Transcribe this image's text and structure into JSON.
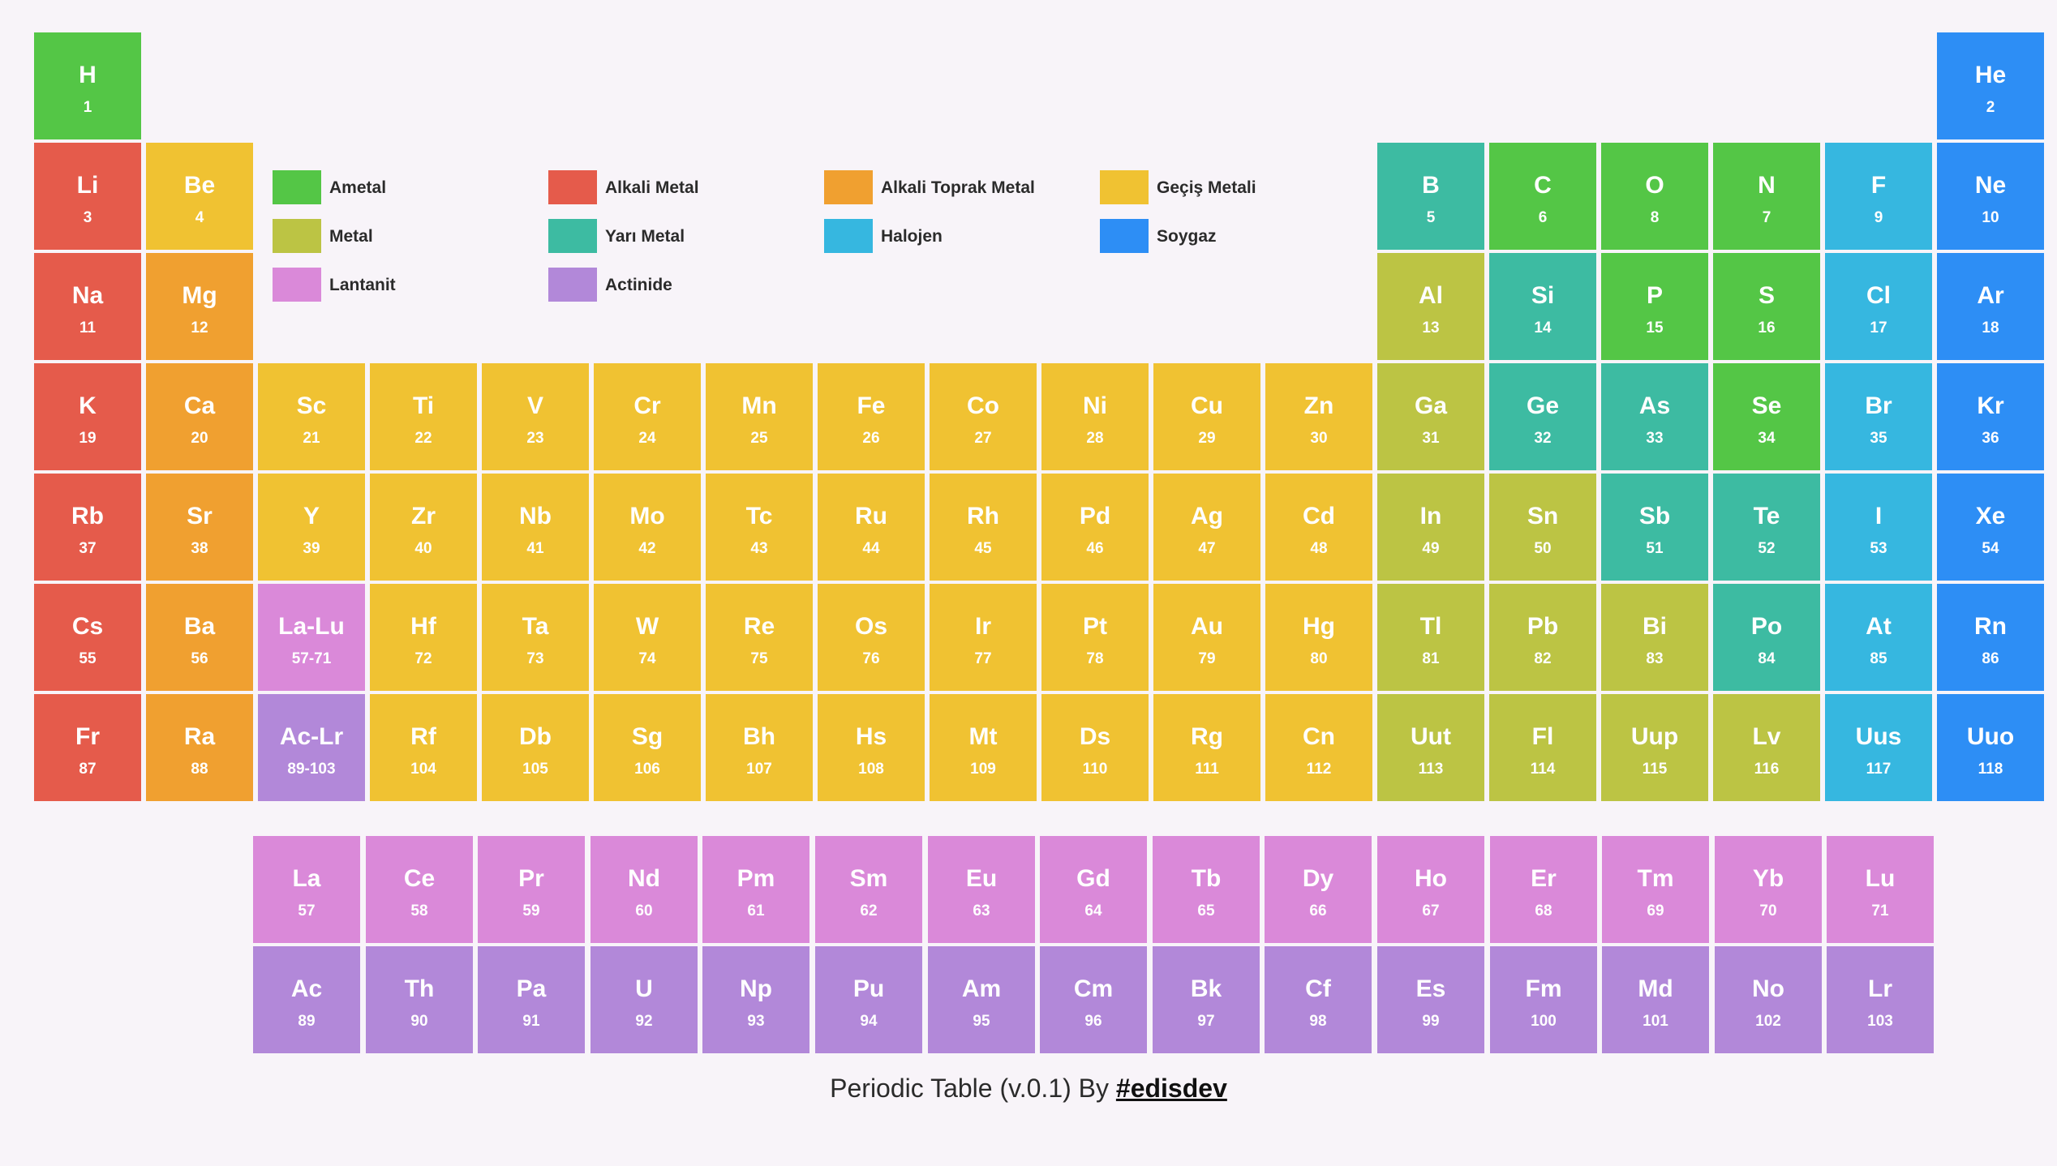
{
  "colors": {
    "ametal": "#54c646",
    "alkali": "#e55b4b",
    "toprak": "#f0a030",
    "gecis": "#f0c232",
    "metal": "#bcc444",
    "yari": "#3dbba2",
    "halojen": "#36b7e0",
    "soygaz": "#2d8ef5",
    "lantanit": "#da89d9",
    "actinide": "#b288d9"
  },
  "legend": [
    {
      "cat": "ametal",
      "label": "Ametal"
    },
    {
      "cat": "alkali",
      "label": "Alkali Metal"
    },
    {
      "cat": "toprak",
      "label": "Alkali Toprak Metal"
    },
    {
      "cat": "gecis",
      "label": "Geçiş Metali"
    },
    {
      "cat": "metal",
      "label": "Metal"
    },
    {
      "cat": "yari",
      "label": "Yarı Metal"
    },
    {
      "cat": "halojen",
      "label": "Halojen"
    },
    {
      "cat": "soygaz",
      "label": "Soygaz"
    },
    {
      "cat": "lantanit",
      "label": "Lantanit"
    },
    {
      "cat": "actinide",
      "label": "Actinide"
    }
  ],
  "elements": [
    {
      "s": "H",
      "n": "1",
      "r": 1,
      "c": 1,
      "cat": "ametal"
    },
    {
      "s": "He",
      "n": "2",
      "r": 1,
      "c": 18,
      "cat": "soygaz"
    },
    {
      "s": "Li",
      "n": "3",
      "r": 2,
      "c": 1,
      "cat": "alkali"
    },
    {
      "s": "Be",
      "n": "4",
      "r": 2,
      "c": 2,
      "cat": "gecis"
    },
    {
      "s": "B",
      "n": "5",
      "r": 2,
      "c": 13,
      "cat": "yari"
    },
    {
      "s": "C",
      "n": "6",
      "r": 2,
      "c": 14,
      "cat": "ametal"
    },
    {
      "s": "O",
      "n": "8",
      "r": 2,
      "c": 15,
      "cat": "ametal"
    },
    {
      "s": "N",
      "n": "7",
      "r": 2,
      "c": 16,
      "cat": "ametal"
    },
    {
      "s": "F",
      "n": "9",
      "r": 2,
      "c": 17,
      "cat": "halojen"
    },
    {
      "s": "Ne",
      "n": "10",
      "r": 2,
      "c": 18,
      "cat": "soygaz"
    },
    {
      "s": "Na",
      "n": "11",
      "r": 3,
      "c": 1,
      "cat": "alkali"
    },
    {
      "s": "Mg",
      "n": "12",
      "r": 3,
      "c": 2,
      "cat": "toprak"
    },
    {
      "s": "Al",
      "n": "13",
      "r": 3,
      "c": 13,
      "cat": "metal"
    },
    {
      "s": "Si",
      "n": "14",
      "r": 3,
      "c": 14,
      "cat": "yari"
    },
    {
      "s": "P",
      "n": "15",
      "r": 3,
      "c": 15,
      "cat": "ametal"
    },
    {
      "s": "S",
      "n": "16",
      "r": 3,
      "c": 16,
      "cat": "ametal"
    },
    {
      "s": "Cl",
      "n": "17",
      "r": 3,
      "c": 17,
      "cat": "halojen"
    },
    {
      "s": "Ar",
      "n": "18",
      "r": 3,
      "c": 18,
      "cat": "soygaz"
    },
    {
      "s": "K",
      "n": "19",
      "r": 4,
      "c": 1,
      "cat": "alkali"
    },
    {
      "s": "Ca",
      "n": "20",
      "r": 4,
      "c": 2,
      "cat": "toprak"
    },
    {
      "s": "Sc",
      "n": "21",
      "r": 4,
      "c": 3,
      "cat": "gecis"
    },
    {
      "s": "Ti",
      "n": "22",
      "r": 4,
      "c": 4,
      "cat": "gecis"
    },
    {
      "s": "V",
      "n": "23",
      "r": 4,
      "c": 5,
      "cat": "gecis"
    },
    {
      "s": "Cr",
      "n": "24",
      "r": 4,
      "c": 6,
      "cat": "gecis"
    },
    {
      "s": "Mn",
      "n": "25",
      "r": 4,
      "c": 7,
      "cat": "gecis"
    },
    {
      "s": "Fe",
      "n": "26",
      "r": 4,
      "c": 8,
      "cat": "gecis"
    },
    {
      "s": "Co",
      "n": "27",
      "r": 4,
      "c": 9,
      "cat": "gecis"
    },
    {
      "s": "Ni",
      "n": "28",
      "r": 4,
      "c": 10,
      "cat": "gecis"
    },
    {
      "s": "Cu",
      "n": "29",
      "r": 4,
      "c": 11,
      "cat": "gecis"
    },
    {
      "s": "Zn",
      "n": "30",
      "r": 4,
      "c": 12,
      "cat": "gecis"
    },
    {
      "s": "Ga",
      "n": "31",
      "r": 4,
      "c": 13,
      "cat": "metal"
    },
    {
      "s": "Ge",
      "n": "32",
      "r": 4,
      "c": 14,
      "cat": "yari"
    },
    {
      "s": "As",
      "n": "33",
      "r": 4,
      "c": 15,
      "cat": "yari"
    },
    {
      "s": "Se",
      "n": "34",
      "r": 4,
      "c": 16,
      "cat": "ametal"
    },
    {
      "s": "Br",
      "n": "35",
      "r": 4,
      "c": 17,
      "cat": "halojen"
    },
    {
      "s": "Kr",
      "n": "36",
      "r": 4,
      "c": 18,
      "cat": "soygaz"
    },
    {
      "s": "Rb",
      "n": "37",
      "r": 5,
      "c": 1,
      "cat": "alkali"
    },
    {
      "s": "Sr",
      "n": "38",
      "r": 5,
      "c": 2,
      "cat": "toprak"
    },
    {
      "s": "Y",
      "n": "39",
      "r": 5,
      "c": 3,
      "cat": "gecis"
    },
    {
      "s": "Zr",
      "n": "40",
      "r": 5,
      "c": 4,
      "cat": "gecis"
    },
    {
      "s": "Nb",
      "n": "41",
      "r": 5,
      "c": 5,
      "cat": "gecis"
    },
    {
      "s": "Mo",
      "n": "42",
      "r": 5,
      "c": 6,
      "cat": "gecis"
    },
    {
      "s": "Tc",
      "n": "43",
      "r": 5,
      "c": 7,
      "cat": "gecis"
    },
    {
      "s": "Ru",
      "n": "44",
      "r": 5,
      "c": 8,
      "cat": "gecis"
    },
    {
      "s": "Rh",
      "n": "45",
      "r": 5,
      "c": 9,
      "cat": "gecis"
    },
    {
      "s": "Pd",
      "n": "46",
      "r": 5,
      "c": 10,
      "cat": "gecis"
    },
    {
      "s": "Ag",
      "n": "47",
      "r": 5,
      "c": 11,
      "cat": "gecis"
    },
    {
      "s": "Cd",
      "n": "48",
      "r": 5,
      "c": 12,
      "cat": "gecis"
    },
    {
      "s": "In",
      "n": "49",
      "r": 5,
      "c": 13,
      "cat": "metal"
    },
    {
      "s": "Sn",
      "n": "50",
      "r": 5,
      "c": 14,
      "cat": "metal"
    },
    {
      "s": "Sb",
      "n": "51",
      "r": 5,
      "c": 15,
      "cat": "yari"
    },
    {
      "s": "Te",
      "n": "52",
      "r": 5,
      "c": 16,
      "cat": "yari"
    },
    {
      "s": "I",
      "n": "53",
      "r": 5,
      "c": 17,
      "cat": "halojen"
    },
    {
      "s": "Xe",
      "n": "54",
      "r": 5,
      "c": 18,
      "cat": "soygaz"
    },
    {
      "s": "Cs",
      "n": "55",
      "r": 6,
      "c": 1,
      "cat": "alkali"
    },
    {
      "s": "Ba",
      "n": "56",
      "r": 6,
      "c": 2,
      "cat": "toprak"
    },
    {
      "s": "La-Lu",
      "n": "57-71",
      "r": 6,
      "c": 3,
      "cat": "lantanit"
    },
    {
      "s": "Hf",
      "n": "72",
      "r": 6,
      "c": 4,
      "cat": "gecis"
    },
    {
      "s": "Ta",
      "n": "73",
      "r": 6,
      "c": 5,
      "cat": "gecis"
    },
    {
      "s": "W",
      "n": "74",
      "r": 6,
      "c": 6,
      "cat": "gecis"
    },
    {
      "s": "Re",
      "n": "75",
      "r": 6,
      "c": 7,
      "cat": "gecis"
    },
    {
      "s": "Os",
      "n": "76",
      "r": 6,
      "c": 8,
      "cat": "gecis"
    },
    {
      "s": "Ir",
      "n": "77",
      "r": 6,
      "c": 9,
      "cat": "gecis"
    },
    {
      "s": "Pt",
      "n": "78",
      "r": 6,
      "c": 10,
      "cat": "gecis"
    },
    {
      "s": "Au",
      "n": "79",
      "r": 6,
      "c": 11,
      "cat": "gecis"
    },
    {
      "s": "Hg",
      "n": "80",
      "r": 6,
      "c": 12,
      "cat": "gecis"
    },
    {
      "s": "Tl",
      "n": "81",
      "r": 6,
      "c": 13,
      "cat": "metal"
    },
    {
      "s": "Pb",
      "n": "82",
      "r": 6,
      "c": 14,
      "cat": "metal"
    },
    {
      "s": "Bi",
      "n": "83",
      "r": 6,
      "c": 15,
      "cat": "metal"
    },
    {
      "s": "Po",
      "n": "84",
      "r": 6,
      "c": 16,
      "cat": "yari"
    },
    {
      "s": "At",
      "n": "85",
      "r": 6,
      "c": 17,
      "cat": "halojen"
    },
    {
      "s": "Rn",
      "n": "86",
      "r": 6,
      "c": 18,
      "cat": "soygaz"
    },
    {
      "s": "Fr",
      "n": "87",
      "r": 7,
      "c": 1,
      "cat": "alkali"
    },
    {
      "s": "Ra",
      "n": "88",
      "r": 7,
      "c": 2,
      "cat": "toprak"
    },
    {
      "s": "Ac-Lr",
      "n": "89-103",
      "r": 7,
      "c": 3,
      "cat": "actinide"
    },
    {
      "s": "Rf",
      "n": "104",
      "r": 7,
      "c": 4,
      "cat": "gecis"
    },
    {
      "s": "Db",
      "n": "105",
      "r": 7,
      "c": 5,
      "cat": "gecis"
    },
    {
      "s": "Sg",
      "n": "106",
      "r": 7,
      "c": 6,
      "cat": "gecis"
    },
    {
      "s": "Bh",
      "n": "107",
      "r": 7,
      "c": 7,
      "cat": "gecis"
    },
    {
      "s": "Hs",
      "n": "108",
      "r": 7,
      "c": 8,
      "cat": "gecis"
    },
    {
      "s": "Mt",
      "n": "109",
      "r": 7,
      "c": 9,
      "cat": "gecis"
    },
    {
      "s": "Ds",
      "n": "110",
      "r": 7,
      "c": 10,
      "cat": "gecis"
    },
    {
      "s": "Rg",
      "n": "111",
      "r": 7,
      "c": 11,
      "cat": "gecis"
    },
    {
      "s": "Cn",
      "n": "112",
      "r": 7,
      "c": 12,
      "cat": "gecis"
    },
    {
      "s": "Uut",
      "n": "113",
      "r": 7,
      "c": 13,
      "cat": "metal"
    },
    {
      "s": "Fl",
      "n": "114",
      "r": 7,
      "c": 14,
      "cat": "metal"
    },
    {
      "s": "Uup",
      "n": "115",
      "r": 7,
      "c": 15,
      "cat": "metal"
    },
    {
      "s": "Lv",
      "n": "116",
      "r": 7,
      "c": 16,
      "cat": "metal"
    },
    {
      "s": "Uus",
      "n": "117",
      "r": 7,
      "c": 17,
      "cat": "halojen"
    },
    {
      "s": "Uuo",
      "n": "118",
      "r": 7,
      "c": 18,
      "cat": "soygaz"
    },
    {
      "s": "La",
      "n": "57",
      "r": 8,
      "c": 3,
      "cat": "lantanit"
    },
    {
      "s": "Ce",
      "n": "58",
      "r": 8,
      "c": 4,
      "cat": "lantanit"
    },
    {
      "s": "Pr",
      "n": "59",
      "r": 8,
      "c": 5,
      "cat": "lantanit"
    },
    {
      "s": "Nd",
      "n": "60",
      "r": 8,
      "c": 6,
      "cat": "lantanit"
    },
    {
      "s": "Pm",
      "n": "61",
      "r": 8,
      "c": 7,
      "cat": "lantanit"
    },
    {
      "s": "Sm",
      "n": "62",
      "r": 8,
      "c": 8,
      "cat": "lantanit"
    },
    {
      "s": "Eu",
      "n": "63",
      "r": 8,
      "c": 9,
      "cat": "lantanit"
    },
    {
      "s": "Gd",
      "n": "64",
      "r": 8,
      "c": 10,
      "cat": "lantanit"
    },
    {
      "s": "Tb",
      "n": "65",
      "r": 8,
      "c": 11,
      "cat": "lantanit"
    },
    {
      "s": "Dy",
      "n": "66",
      "r": 8,
      "c": 12,
      "cat": "lantanit"
    },
    {
      "s": "Ho",
      "n": "67",
      "r": 8,
      "c": 13,
      "cat": "lantanit"
    },
    {
      "s": "Er",
      "n": "68",
      "r": 8,
      "c": 14,
      "cat": "lantanit"
    },
    {
      "s": "Tm",
      "n": "69",
      "r": 8,
      "c": 15,
      "cat": "lantanit"
    },
    {
      "s": "Yb",
      "n": "70",
      "r": 8,
      "c": 16,
      "cat": "lantanit"
    },
    {
      "s": "Lu",
      "n": "71",
      "r": 8,
      "c": 17,
      "cat": "lantanit"
    },
    {
      "s": "Ac",
      "n": "89",
      "r": 9,
      "c": 3,
      "cat": "actinide"
    },
    {
      "s": "Th",
      "n": "90",
      "r": 9,
      "c": 4,
      "cat": "actinide"
    },
    {
      "s": "Pa",
      "n": "91",
      "r": 9,
      "c": 5,
      "cat": "actinide"
    },
    {
      "s": "U",
      "n": "92",
      "r": 9,
      "c": 6,
      "cat": "actinide"
    },
    {
      "s": "Np",
      "n": "93",
      "r": 9,
      "c": 7,
      "cat": "actinide"
    },
    {
      "s": "Pu",
      "n": "94",
      "r": 9,
      "c": 8,
      "cat": "actinide"
    },
    {
      "s": "Am",
      "n": "95",
      "r": 9,
      "c": 9,
      "cat": "actinide"
    },
    {
      "s": "Cm",
      "n": "96",
      "r": 9,
      "c": 10,
      "cat": "actinide"
    },
    {
      "s": "Bk",
      "n": "97",
      "r": 9,
      "c": 11,
      "cat": "actinide"
    },
    {
      "s": "Cf",
      "n": "98",
      "r": 9,
      "c": 12,
      "cat": "actinide"
    },
    {
      "s": "Es",
      "n": "99",
      "r": 9,
      "c": 13,
      "cat": "actinide"
    },
    {
      "s": "Fm",
      "n": "100",
      "r": 9,
      "c": 14,
      "cat": "actinide"
    },
    {
      "s": "Md",
      "n": "101",
      "r": 9,
      "c": 15,
      "cat": "actinide"
    },
    {
      "s": "No",
      "n": "102",
      "r": 9,
      "c": 16,
      "cat": "actinide"
    },
    {
      "s": "Lr",
      "n": "103",
      "r": 9,
      "c": 17,
      "cat": "actinide"
    }
  ],
  "footer": {
    "text": "Periodic Table (v.0.1) By ",
    "link": "#edisdev"
  }
}
